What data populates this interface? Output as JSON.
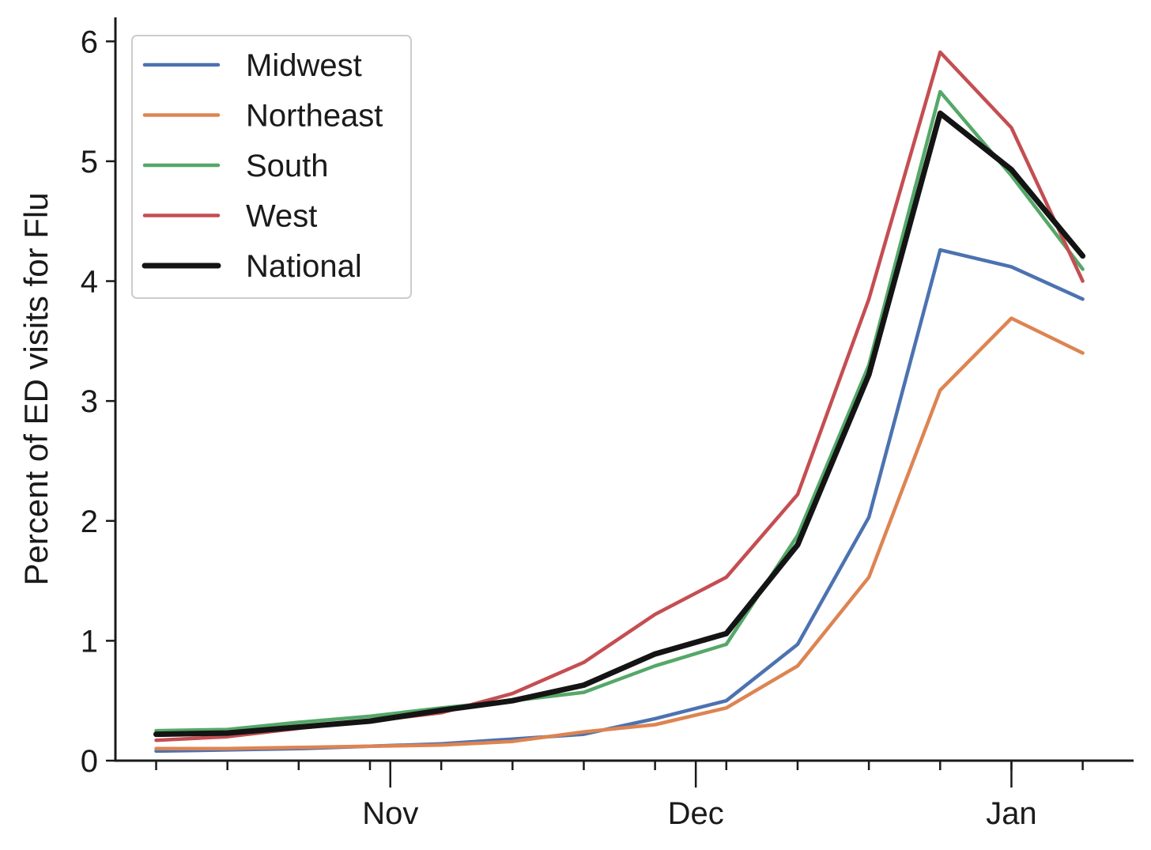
{
  "chart_data": {
    "type": "line",
    "title": "",
    "xlabel": "",
    "ylabel": "Percent of ED visits for Flu",
    "x": [
      "2022-10-09",
      "2022-10-16",
      "2022-10-23",
      "2022-10-30",
      "2022-11-06",
      "2022-11-13",
      "2022-11-20",
      "2022-11-27",
      "2022-12-04",
      "2022-12-11",
      "2022-12-18",
      "2022-12-25",
      "2023-01-01",
      "2023-01-08"
    ],
    "x_range": [
      "2022-10-05",
      "2023-01-13"
    ],
    "x_ticks_major": [
      {
        "date": "2022-11-01",
        "label": "Nov"
      },
      {
        "date": "2022-12-01",
        "label": "Dec"
      },
      {
        "date": "2023-01-01",
        "label": "Jan"
      }
    ],
    "ylim": [
      0,
      6.2
    ],
    "yticks": [
      0,
      1,
      2,
      3,
      4,
      5,
      6
    ],
    "grid": false,
    "legend_position": "top-left",
    "series": [
      {
        "name": "Midwest",
        "color": "#4c72b0",
        "values": [
          0.08,
          0.09,
          0.1,
          0.12,
          0.14,
          0.18,
          0.22,
          0.35,
          0.5,
          0.97,
          2.03,
          4.26,
          4.12,
          3.85
        ]
      },
      {
        "name": "Northeast",
        "color": "#dd8452",
        "values": [
          0.1,
          0.1,
          0.11,
          0.12,
          0.13,
          0.16,
          0.24,
          0.3,
          0.44,
          0.79,
          1.53,
          3.09,
          3.69,
          3.4
        ]
      },
      {
        "name": "South",
        "color": "#55a868",
        "values": [
          0.25,
          0.26,
          0.32,
          0.37,
          0.44,
          0.5,
          0.57,
          0.79,
          0.97,
          1.88,
          3.3,
          5.58,
          4.88,
          4.1
        ]
      },
      {
        "name": "West",
        "color": "#c44e52",
        "values": [
          0.17,
          0.2,
          0.27,
          0.33,
          0.4,
          0.56,
          0.82,
          1.22,
          1.53,
          2.22,
          3.85,
          5.91,
          5.28,
          4.0
        ]
      },
      {
        "name": "National",
        "color": "#141414",
        "values": [
          0.22,
          0.23,
          0.28,
          0.33,
          0.42,
          0.5,
          0.63,
          0.89,
          1.06,
          1.8,
          3.22,
          5.4,
          4.93,
          4.21
        ]
      }
    ]
  }
}
